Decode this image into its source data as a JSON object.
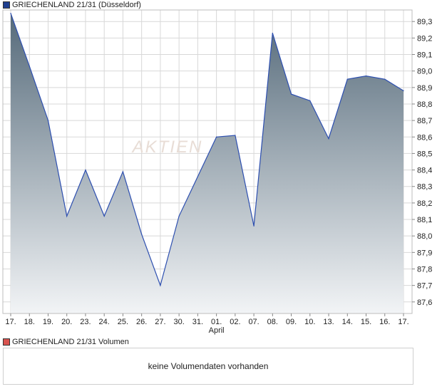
{
  "legend": {
    "price_label": "GRIECHENLAND 21/31 (Düsseldorf)",
    "volume_label": "GRIECHENLAND 21/31 Volumen",
    "price_color": "#1f3f8f",
    "volume_color": "#d9534f"
  },
  "volume_panel": {
    "message": "keine Volumendaten vorhanden"
  },
  "watermark": "AKTIEN",
  "chart_data": {
    "type": "area",
    "title": "",
    "xlabel": "",
    "ylabel": "",
    "x": [
      "17.",
      "18.",
      "19.",
      "20.",
      "23.",
      "24.",
      "25.",
      "26.",
      "27.",
      "30.",
      "31.",
      "01.",
      "02.",
      "07.",
      "08.",
      "09.",
      "10.",
      "13.",
      "14.",
      "15.",
      "16.",
      "17."
    ],
    "x_sublabels": [
      {
        "index": 11,
        "text": "April"
      }
    ],
    "series": [
      {
        "values": [
          89.35,
          89.03,
          88.7,
          88.12,
          88.4,
          88.12,
          88.39,
          88.01,
          87.7,
          88.12,
          88.36,
          88.6,
          88.61,
          88.06,
          89.23,
          88.86,
          88.82,
          88.59,
          88.95,
          88.97,
          88.95,
          88.88
        ]
      }
    ],
    "ylim": [
      87.53,
      89.37
    ],
    "yticks": [
      "87,6",
      "87,7",
      "87,8",
      "87,9",
      "88,0",
      "88,1",
      "88,2",
      "88,3",
      "88,4",
      "88,5",
      "88,6",
      "88,7",
      "88,8",
      "88,9",
      "89,0",
      "89,1",
      "89,2",
      "89,3"
    ],
    "ytick_values": [
      87.6,
      87.7,
      87.8,
      87.9,
      88.0,
      88.1,
      88.2,
      88.3,
      88.4,
      88.5,
      88.6,
      88.7,
      88.8,
      88.9,
      89.0,
      89.1,
      89.2,
      89.3
    ],
    "grid": true,
    "legend": "top-left",
    "colors": {
      "line": "#2d4fb0",
      "fill_top": "#556a7a",
      "fill_bottom": "#f2f4f6",
      "grid": "#d8d8d8"
    }
  }
}
